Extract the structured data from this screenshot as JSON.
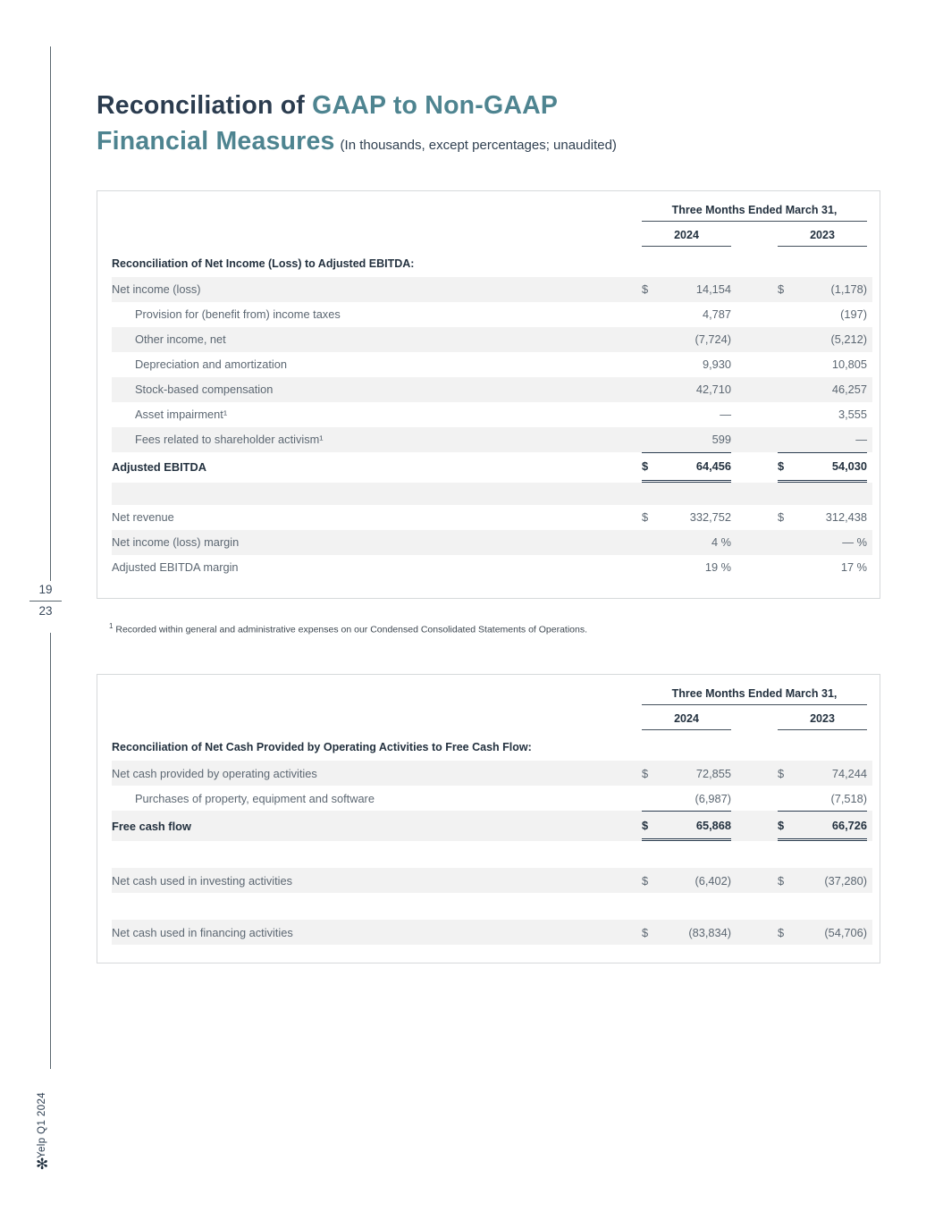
{
  "colors": {
    "navy": "#2b3c4f",
    "teal": "#4e8490",
    "shade": "#f2f2f2"
  },
  "page": {
    "title": {
      "part1": "Reconciliation of ",
      "part2": "GAAP to Non-GAAP",
      "part3": "Financial Measures",
      "subtitle": "(In thousands, except percentages; unaudited)"
    },
    "sidebar": {
      "page_current": "19",
      "page_total": "23",
      "vertical_label": "Yelp Q1 2024",
      "logo_glyph": "✻"
    },
    "footnote_marker": "1",
    "footnote_text": "Recorded within general and administrative expenses on our Condensed Consolidated Statements of Operations."
  },
  "table1": {
    "period_header": "Three Months Ended March 31,",
    "years": [
      "2024",
      "2023"
    ],
    "section_header": "Reconciliation of Net Income (Loss) to Adjusted EBITDA:",
    "rows": [
      {
        "label": "Net income (loss)",
        "d1": "$",
        "v1": "14,154",
        "d2": "$",
        "v2": "(1,178)",
        "shaded": true
      },
      {
        "label": "Provision for (benefit from) income taxes",
        "indent": true,
        "v1": "4,787",
        "v2": "(197)"
      },
      {
        "label": "Other income, net",
        "indent": true,
        "v1": "(7,724)",
        "v2": "(5,212)",
        "shaded": true
      },
      {
        "label": "Depreciation and amortization",
        "indent": true,
        "v1": "9,930",
        "v2": "10,805"
      },
      {
        "label": "Stock-based compensation",
        "indent": true,
        "v1": "42,710",
        "v2": "46,257",
        "shaded": true
      },
      {
        "label": "Asset impairment¹",
        "indent": true,
        "v1": "—",
        "v2": "3,555"
      },
      {
        "label": "Fees related to shareholder activism¹",
        "indent": true,
        "v1": "599",
        "v2": "—",
        "shaded": true
      },
      {
        "label": "Adjusted EBITDA",
        "d1": "$",
        "v1": "64,456",
        "d2": "$",
        "v2": "54,030",
        "style": "total"
      },
      {
        "style": "spacer",
        "shaded": true
      },
      {
        "label": "Net revenue",
        "d1": "$",
        "v1": "332,752",
        "d2": "$",
        "v2": "312,438"
      },
      {
        "label": "Net income (loss) margin",
        "v1": "4 %",
        "v2": "— %",
        "shaded": true
      },
      {
        "label": "Adjusted EBITDA margin",
        "v1": "19 %",
        "v2": "17 %"
      }
    ]
  },
  "table2": {
    "period_header": "Three Months Ended March 31,",
    "years": [
      "2024",
      "2023"
    ],
    "section_header": "Reconciliation of Net Cash Provided by Operating Activities to Free Cash Flow:",
    "rows": [
      {
        "label": "Net cash provided by operating activities",
        "d1": "$",
        "v1": "72,855",
        "d2": "$",
        "v2": "74,244",
        "shaded": true
      },
      {
        "label": "Purchases of property, equipment and software",
        "indent": true,
        "v1": "(6,987)",
        "v2": "(7,518)"
      },
      {
        "label": "Free cash flow",
        "d1": "$",
        "v1": "65,868",
        "d2": "$",
        "v2": "66,726",
        "style": "total",
        "shaded": true
      },
      {
        "style": "spacer",
        "tall": true
      },
      {
        "label": "Net cash used in investing activities",
        "d1": "$",
        "v1": "(6,402)",
        "d2": "$",
        "v2": "(37,280)",
        "shaded": true
      },
      {
        "style": "spacer",
        "tall": true
      },
      {
        "label": "Net cash used in financing activities",
        "d1": "$",
        "v1": "(83,834)",
        "d2": "$",
        "v2": "(54,706)",
        "shaded": true
      }
    ]
  }
}
